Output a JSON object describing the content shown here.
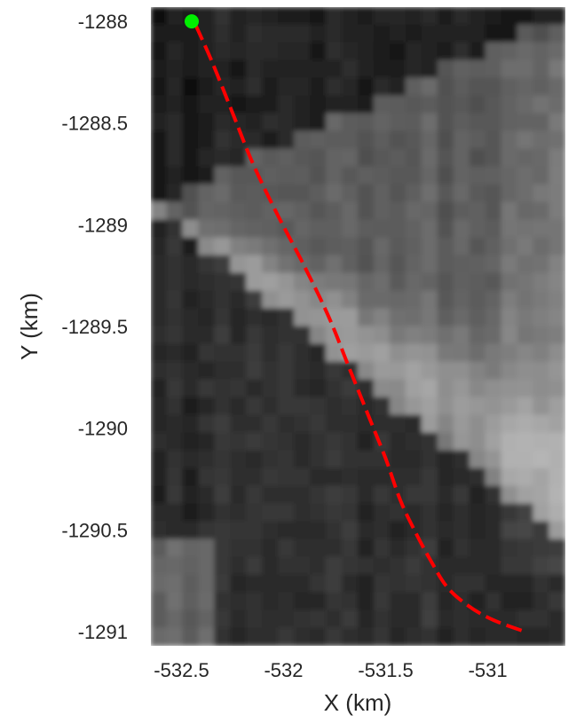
{
  "chart_data": {
    "type": "line",
    "title": "",
    "xlabel": "X (km)",
    "ylabel": "Y (km)",
    "xlim": [
      -532.65,
      -530.62
    ],
    "ylim": [
      -1291.07,
      -1287.93
    ],
    "y_reversed": true,
    "xticks": [
      -532.5,
      -532,
      -531.5,
      -531
    ],
    "xtick_labels": [
      "-532.5",
      "-532",
      "-531.5",
      "-531"
    ],
    "yticks": [
      -1288,
      -1288.5,
      -1289,
      -1289.5,
      -1290,
      -1290.5,
      -1291
    ],
    "ytick_labels": [
      "-1288",
      "-1288.5",
      "-1289",
      "-1289.5",
      "-1290",
      "-1290.5",
      "-1291"
    ],
    "grid": false,
    "legend": "none",
    "background": "grayscale raster image",
    "series": [
      {
        "color": "#ff0000",
        "style": "dashed",
        "x": [
          -532.43,
          -532.35,
          -532.25,
          -532.15,
          -532.03,
          -531.9,
          -531.78,
          -531.68,
          -531.58,
          -531.5,
          -531.43,
          -531.36,
          -531.28,
          -531.2,
          -531.1,
          -530.98,
          -530.82
        ],
        "y": [
          -1288.02,
          -1288.2,
          -1288.45,
          -1288.7,
          -1288.95,
          -1289.2,
          -1289.45,
          -1289.7,
          -1289.95,
          -1290.15,
          -1290.35,
          -1290.5,
          -1290.65,
          -1290.78,
          -1290.87,
          -1290.94,
          -1291.0
        ]
      }
    ],
    "markers": [
      {
        "x": -532.45,
        "y": -1288.0,
        "color": "#00ee00",
        "shape": "circle"
      }
    ]
  }
}
